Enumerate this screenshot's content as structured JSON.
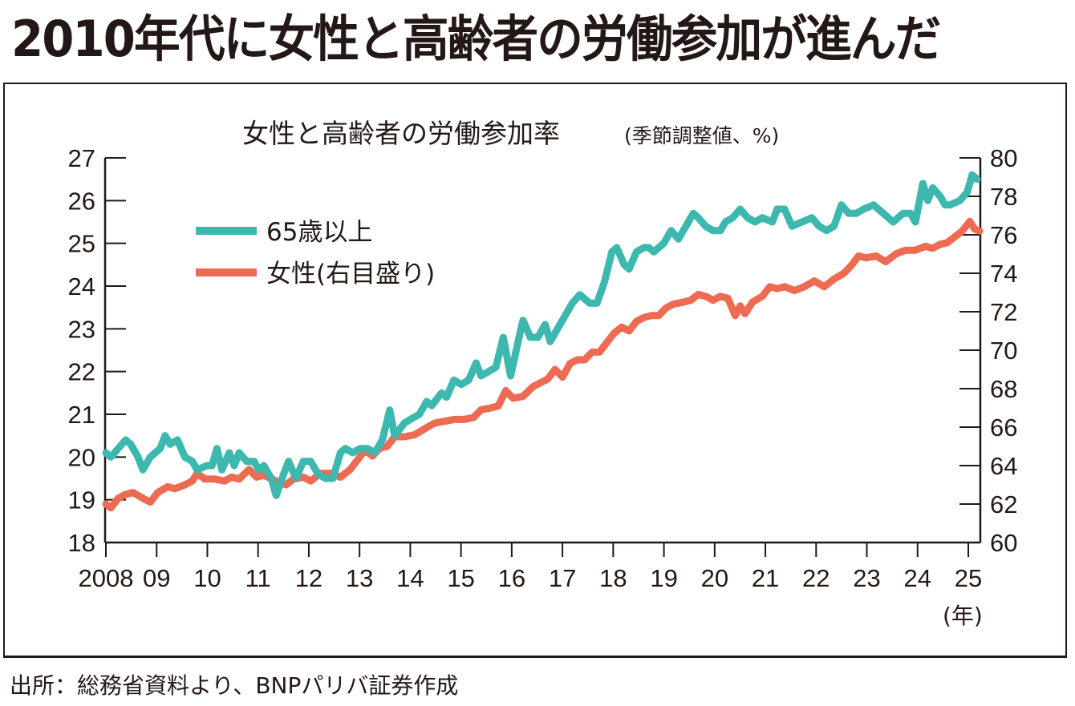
{
  "headline": "2010年代に女性と高齢者の労働参加が進んだ",
  "source": "出所：総務省資料より、BNPパリバ証券作成",
  "colors": {
    "elderly": "#3db8ae",
    "women": "#ee6b53",
    "text": "#231815"
  },
  "chart_data": {
    "type": "line",
    "title": "女性と高齢者の労働参加率",
    "subtitle": "(季節調整値、%)",
    "xlabel": "(年)",
    "x_tick_labels": [
      "2008",
      "09",
      "10",
      "11",
      "12",
      "13",
      "14",
      "15",
      "16",
      "17",
      "18",
      "19",
      "20",
      "21",
      "22",
      "23",
      "24",
      "25"
    ],
    "x_range": [
      2008,
      2025.3
    ],
    "y_left": {
      "range": [
        18,
        27
      ],
      "ticks": [
        "18",
        "19",
        "20",
        "21",
        "22",
        "23",
        "24",
        "25",
        "26",
        "27"
      ],
      "label": "65歳以上"
    },
    "y_right": {
      "range": [
        60,
        80
      ],
      "ticks": [
        "60",
        "62",
        "64",
        "66",
        "68",
        "70",
        "72",
        "74",
        "76",
        "78",
        "80"
      ],
      "label": "女性(右目盛り)"
    },
    "grid": false,
    "legend": {
      "placement": "top-left",
      "entries": [
        {
          "label": "65歳以上",
          "series": "elderly"
        },
        {
          "label": "女性(右目盛り)",
          "series": "women"
        }
      ]
    },
    "series": [
      {
        "name": "65歳以上",
        "key": "elderly",
        "axis": "left",
        "points": [
          [
            2008.0,
            20.1
          ],
          [
            2008.1,
            20.0
          ],
          [
            2008.25,
            20.2
          ],
          [
            2008.4,
            20.4
          ],
          [
            2008.5,
            20.3
          ],
          [
            2008.65,
            20.0
          ],
          [
            2008.75,
            19.7
          ],
          [
            2008.9,
            20.0
          ],
          [
            2009.1,
            20.2
          ],
          [
            2009.2,
            20.5
          ],
          [
            2009.3,
            20.3
          ],
          [
            2009.45,
            20.4
          ],
          [
            2009.6,
            20.0
          ],
          [
            2009.75,
            19.9
          ],
          [
            2009.85,
            19.7
          ],
          [
            2010.05,
            19.8
          ],
          [
            2010.15,
            19.8
          ],
          [
            2010.25,
            20.2
          ],
          [
            2010.35,
            19.7
          ],
          [
            2010.5,
            20.1
          ],
          [
            2010.6,
            19.8
          ],
          [
            2010.7,
            20.1
          ],
          [
            2010.85,
            19.9
          ],
          [
            2011.0,
            19.9
          ],
          [
            2011.1,
            19.7
          ],
          [
            2011.2,
            19.8
          ],
          [
            2011.35,
            19.5
          ],
          [
            2011.45,
            19.1
          ],
          [
            2011.6,
            19.6
          ],
          [
            2011.7,
            19.9
          ],
          [
            2011.85,
            19.5
          ],
          [
            2012.0,
            19.9
          ],
          [
            2012.15,
            19.9
          ],
          [
            2012.3,
            19.6
          ],
          [
            2012.45,
            19.5
          ],
          [
            2012.6,
            19.5
          ],
          [
            2012.75,
            20.1
          ],
          [
            2012.85,
            20.2
          ],
          [
            2013.0,
            20.1
          ],
          [
            2013.15,
            20.2
          ],
          [
            2013.3,
            20.2
          ],
          [
            2013.45,
            20.1
          ],
          [
            2013.6,
            20.4
          ],
          [
            2013.75,
            21.1
          ],
          [
            2013.85,
            20.5
          ],
          [
            2014.05,
            20.8
          ],
          [
            2014.2,
            20.9
          ],
          [
            2014.35,
            21.0
          ],
          [
            2014.5,
            21.3
          ],
          [
            2014.6,
            21.2
          ],
          [
            2014.8,
            21.5
          ],
          [
            2014.9,
            21.4
          ],
          [
            2015.05,
            21.8
          ],
          [
            2015.2,
            21.7
          ],
          [
            2015.35,
            21.8
          ],
          [
            2015.5,
            22.2
          ],
          [
            2015.6,
            21.9
          ],
          [
            2015.75,
            22.0
          ],
          [
            2015.9,
            22.1
          ],
          [
            2016.05,
            22.8
          ],
          [
            2016.2,
            21.9
          ],
          [
            2016.35,
            22.7
          ],
          [
            2016.45,
            23.2
          ],
          [
            2016.6,
            22.8
          ],
          [
            2016.75,
            22.8
          ],
          [
            2016.9,
            23.1
          ],
          [
            2017.0,
            22.7
          ],
          [
            2017.15,
            23.0
          ],
          [
            2017.3,
            23.3
          ],
          [
            2017.45,
            23.6
          ],
          [
            2017.6,
            23.8
          ],
          [
            2017.8,
            23.6
          ],
          [
            2017.95,
            23.6
          ],
          [
            2018.1,
            24.1
          ],
          [
            2018.25,
            24.8
          ],
          [
            2018.35,
            24.9
          ],
          [
            2018.5,
            24.5
          ],
          [
            2018.6,
            24.4
          ],
          [
            2018.75,
            24.8
          ],
          [
            2018.9,
            24.9
          ],
          [
            2019.0,
            24.9
          ],
          [
            2019.1,
            24.8
          ],
          [
            2019.3,
            25.0
          ],
          [
            2019.45,
            25.3
          ],
          [
            2019.6,
            25.1
          ],
          [
            2019.75,
            25.4
          ],
          [
            2019.9,
            25.7
          ],
          [
            2020.0,
            25.6
          ],
          [
            2020.15,
            25.4
          ],
          [
            2020.3,
            25.3
          ],
          [
            2020.45,
            25.3
          ],
          [
            2020.55,
            25.5
          ],
          [
            2020.7,
            25.6
          ],
          [
            2020.85,
            25.8
          ],
          [
            2021.0,
            25.6
          ],
          [
            2021.15,
            25.5
          ],
          [
            2021.3,
            25.6
          ],
          [
            2021.5,
            25.5
          ],
          [
            2021.6,
            25.8
          ],
          [
            2021.75,
            25.8
          ],
          [
            2021.9,
            25.4
          ],
          [
            2022.1,
            25.5
          ],
          [
            2022.3,
            25.6
          ],
          [
            2022.45,
            25.4
          ],
          [
            2022.6,
            25.3
          ],
          [
            2022.75,
            25.4
          ],
          [
            2022.9,
            25.9
          ],
          [
            2023.05,
            25.7
          ],
          [
            2023.2,
            25.7
          ],
          [
            2023.35,
            25.8
          ],
          [
            2023.55,
            25.9
          ],
          [
            2023.75,
            25.7
          ],
          [
            2023.95,
            25.5
          ],
          [
            2024.15,
            25.7
          ],
          [
            2024.3,
            25.7
          ],
          [
            2024.4,
            25.5
          ],
          [
            2024.55,
            26.4
          ],
          [
            2024.65,
            26.0
          ],
          [
            2024.75,
            26.3
          ],
          [
            2024.9,
            26.1
          ],
          [
            2025.0,
            25.9
          ],
          [
            2025.1,
            25.9
          ],
          [
            2025.3,
            26.0
          ],
          [
            2025.45,
            26.2
          ],
          [
            2025.55,
            26.6
          ],
          [
            2025.65,
            26.5
          ]
        ]
      },
      {
        "name": "女性(右目盛り)",
        "key": "women",
        "axis": "right",
        "points": [
          [
            2008.0,
            62.0
          ],
          [
            2008.1,
            61.8
          ],
          [
            2008.25,
            62.3
          ],
          [
            2008.4,
            62.5
          ],
          [
            2008.55,
            62.6
          ],
          [
            2008.75,
            62.3
          ],
          [
            2008.9,
            62.1
          ],
          [
            2009.05,
            62.6
          ],
          [
            2009.25,
            62.9
          ],
          [
            2009.4,
            62.8
          ],
          [
            2009.6,
            63.0
          ],
          [
            2009.75,
            63.2
          ],
          [
            2009.85,
            63.6
          ],
          [
            2010.0,
            63.3
          ],
          [
            2010.2,
            63.3
          ],
          [
            2010.4,
            63.2
          ],
          [
            2010.55,
            63.4
          ],
          [
            2010.7,
            63.3
          ],
          [
            2010.9,
            63.8
          ],
          [
            2011.05,
            63.4
          ],
          [
            2011.2,
            63.5
          ],
          [
            2011.45,
            63.2
          ],
          [
            2011.65,
            63.0
          ],
          [
            2011.8,
            63.3
          ],
          [
            2012.0,
            63.4
          ],
          [
            2012.15,
            63.2
          ],
          [
            2012.35,
            63.6
          ],
          [
            2012.55,
            63.6
          ],
          [
            2012.75,
            63.4
          ],
          [
            2012.95,
            63.8
          ],
          [
            2013.1,
            64.3
          ],
          [
            2013.25,
            64.8
          ],
          [
            2013.4,
            64.5
          ],
          [
            2013.55,
            64.9
          ],
          [
            2013.7,
            65.0
          ],
          [
            2013.85,
            65.5
          ],
          [
            2014.05,
            65.5
          ],
          [
            2014.25,
            65.6
          ],
          [
            2014.45,
            65.9
          ],
          [
            2014.65,
            66.2
          ],
          [
            2014.85,
            66.3
          ],
          [
            2015.05,
            66.4
          ],
          [
            2015.25,
            66.4
          ],
          [
            2015.45,
            66.5
          ],
          [
            2015.6,
            66.9
          ],
          [
            2015.8,
            67.0
          ],
          [
            2015.95,
            67.1
          ],
          [
            2016.1,
            67.9
          ],
          [
            2016.25,
            67.5
          ],
          [
            2016.45,
            67.6
          ],
          [
            2016.65,
            68.1
          ],
          [
            2016.8,
            68.3
          ],
          [
            2016.95,
            68.5
          ],
          [
            2017.1,
            69.0
          ],
          [
            2017.25,
            68.6
          ],
          [
            2017.4,
            69.3
          ],
          [
            2017.55,
            69.5
          ],
          [
            2017.7,
            69.5
          ],
          [
            2017.85,
            69.9
          ],
          [
            2018.0,
            69.9
          ],
          [
            2018.15,
            70.4
          ],
          [
            2018.3,
            70.9
          ],
          [
            2018.45,
            71.2
          ],
          [
            2018.6,
            71.0
          ],
          [
            2018.75,
            71.5
          ],
          [
            2018.9,
            71.7
          ],
          [
            2019.05,
            71.8
          ],
          [
            2019.2,
            71.8
          ],
          [
            2019.35,
            72.2
          ],
          [
            2019.5,
            72.4
          ],
          [
            2019.7,
            72.5
          ],
          [
            2019.85,
            72.6
          ],
          [
            2020.0,
            72.9
          ],
          [
            2020.15,
            72.8
          ],
          [
            2020.3,
            72.6
          ],
          [
            2020.45,
            72.8
          ],
          [
            2020.6,
            72.7
          ],
          [
            2020.75,
            71.8
          ],
          [
            2020.85,
            72.3
          ],
          [
            2020.95,
            71.9
          ],
          [
            2021.1,
            72.5
          ],
          [
            2021.3,
            72.8
          ],
          [
            2021.45,
            73.3
          ],
          [
            2021.6,
            73.2
          ],
          [
            2021.75,
            73.3
          ],
          [
            2021.95,
            73.1
          ],
          [
            2022.15,
            73.3
          ],
          [
            2022.35,
            73.6
          ],
          [
            2022.55,
            73.3
          ],
          [
            2022.75,
            73.7
          ],
          [
            2022.95,
            74.0
          ],
          [
            2023.1,
            74.4
          ],
          [
            2023.25,
            74.9
          ],
          [
            2023.4,
            74.8
          ],
          [
            2023.6,
            74.9
          ],
          [
            2023.8,
            74.6
          ],
          [
            2024.0,
            75.0
          ],
          [
            2024.2,
            75.2
          ],
          [
            2024.4,
            75.2
          ],
          [
            2024.6,
            75.4
          ],
          [
            2024.75,
            75.3
          ],
          [
            2024.9,
            75.5
          ],
          [
            2025.05,
            75.6
          ],
          [
            2025.2,
            75.9
          ],
          [
            2025.35,
            76.2
          ],
          [
            2025.5,
            76.7
          ],
          [
            2025.6,
            76.3
          ],
          [
            2025.7,
            76.2
          ]
        ]
      }
    ]
  }
}
